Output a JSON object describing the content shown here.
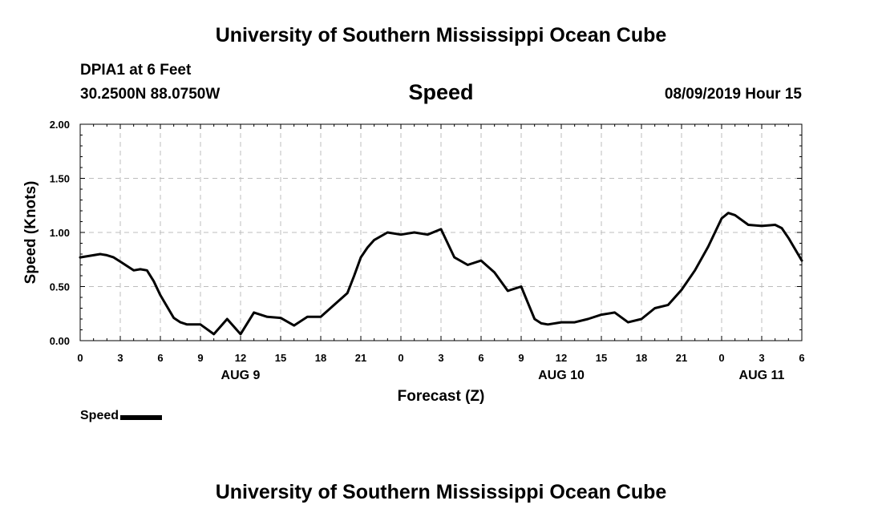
{
  "header": {
    "title": "University of Southern Mississippi Ocean Cube",
    "station": "DPIA1 at 6 Feet",
    "coordinates": "30.2500N 88.0750W",
    "variable": "Speed",
    "timestamp": "08/09/2019 Hour 15"
  },
  "footer": {
    "title": "University of Southern Mississippi Ocean Cube"
  },
  "legend": {
    "label": "Speed"
  },
  "chart_data": {
    "type": "line",
    "title": "Speed",
    "xlabel": "Forecast (Z)",
    "ylabel": "Speed (Knots)",
    "xlim": [
      0,
      54
    ],
    "ylim": [
      0,
      2
    ],
    "x_ticks": [
      0,
      3,
      6,
      9,
      12,
      15,
      18,
      21,
      24,
      27,
      30,
      33,
      36,
      39,
      42,
      45,
      48,
      51,
      54
    ],
    "x_tick_labels": [
      "0",
      "3",
      "6",
      "9",
      "12",
      "15",
      "18",
      "21",
      "0",
      "3",
      "6",
      "9",
      "12",
      "15",
      "18",
      "21",
      "0",
      "3",
      "6"
    ],
    "y_ticks": [
      0,
      0.5,
      1,
      1.5,
      2
    ],
    "y_tick_labels": [
      "0.00",
      "0.50",
      "1.00",
      "1.50",
      "2.00"
    ],
    "date_labels": [
      {
        "x": 12,
        "label": "AUG 9"
      },
      {
        "x": 36,
        "label": "AUG 10"
      },
      {
        "x": 51,
        "label": "AUG 11"
      }
    ],
    "grid": true,
    "series": [
      {
        "name": "Speed",
        "color": "#000000",
        "x": [
          0,
          1,
          1.5,
          2,
          2.5,
          3,
          4,
          4.5,
          5,
          5.5,
          6,
          7,
          7.5,
          8,
          9,
          10,
          11,
          12,
          13,
          14,
          15,
          16,
          17,
          18,
          19,
          20,
          20.5,
          21,
          21.5,
          22,
          23,
          24,
          25,
          26,
          27,
          28,
          29,
          30,
          31,
          32,
          33,
          34,
          34.5,
          35,
          36,
          37,
          38,
          39,
          40,
          41,
          42,
          43,
          44,
          45,
          46,
          47,
          48,
          48.5,
          49,
          50,
          51,
          52,
          52.5,
          53,
          54
        ],
        "values": [
          0.77,
          0.79,
          0.8,
          0.79,
          0.77,
          0.73,
          0.65,
          0.66,
          0.65,
          0.55,
          0.42,
          0.21,
          0.17,
          0.15,
          0.15,
          0.06,
          0.2,
          0.06,
          0.26,
          0.22,
          0.21,
          0.14,
          0.22,
          0.22,
          0.33,
          0.44,
          0.6,
          0.77,
          0.86,
          0.93,
          1.0,
          0.98,
          1.0,
          0.98,
          1.03,
          0.77,
          0.7,
          0.74,
          0.63,
          0.46,
          0.5,
          0.2,
          0.16,
          0.15,
          0.17,
          0.17,
          0.2,
          0.24,
          0.26,
          0.17,
          0.2,
          0.3,
          0.33,
          0.47,
          0.65,
          0.87,
          1.13,
          1.18,
          1.16,
          1.07,
          1.06,
          1.07,
          1.04,
          0.95,
          0.74
        ]
      }
    ]
  }
}
